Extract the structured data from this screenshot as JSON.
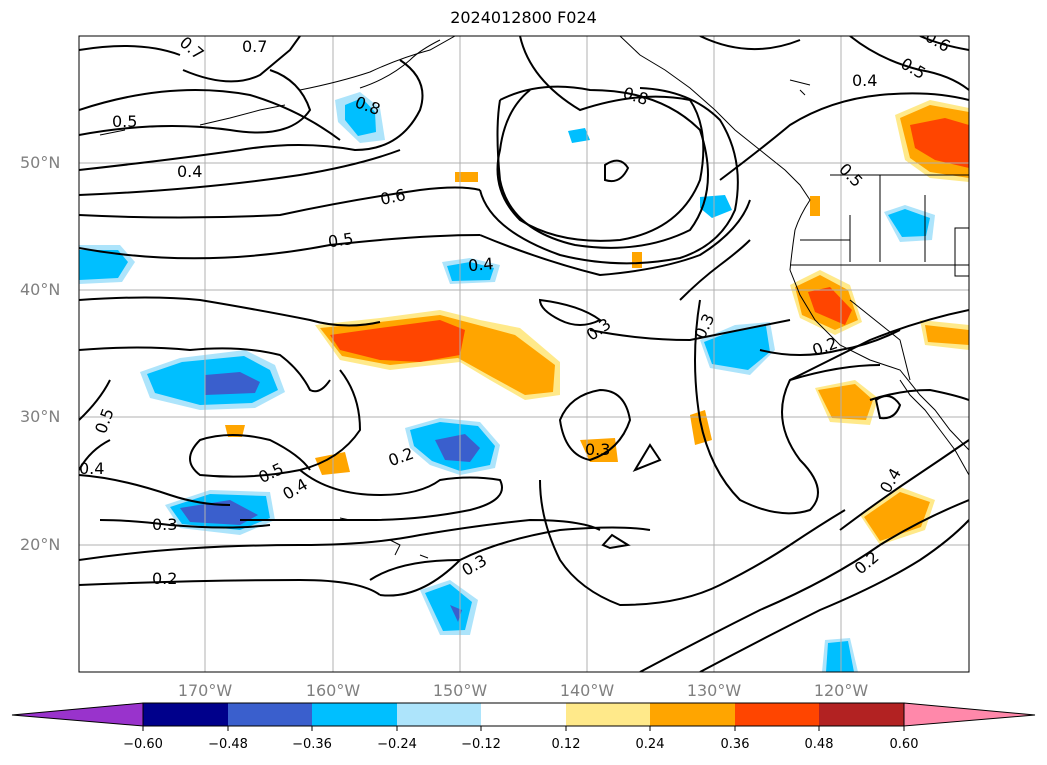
{
  "title": "2024012800 F024",
  "map": {
    "lat_labels": [
      "50°N",
      "40°N",
      "30°N",
      "20°N"
    ],
    "lon_labels": [
      "170°W",
      "160°W",
      "150°W",
      "140°W",
      "130°W",
      "120°W"
    ]
  },
  "contour_labels": [
    {
      "id": "c1",
      "text": "0.7"
    },
    {
      "id": "c2",
      "text": "0.7"
    },
    {
      "id": "c3",
      "text": "0.8"
    },
    {
      "id": "c4",
      "text": "0.5"
    },
    {
      "id": "c5",
      "text": "0.4"
    },
    {
      "id": "c6",
      "text": "0.6"
    },
    {
      "id": "c7",
      "text": "0.5"
    },
    {
      "id": "c8",
      "text": "0.4"
    },
    {
      "id": "c9",
      "text": "0.8"
    },
    {
      "id": "c10",
      "text": "0.4"
    },
    {
      "id": "c11",
      "text": "0.5"
    },
    {
      "id": "c12",
      "text": "0.6"
    },
    {
      "id": "c13",
      "text": "0.5"
    },
    {
      "id": "c14",
      "text": "0.3"
    },
    {
      "id": "c15",
      "text": "0.3"
    },
    {
      "id": "c16",
      "text": "0.2"
    },
    {
      "id": "c17",
      "text": "0.5"
    },
    {
      "id": "c18",
      "text": "0.4"
    },
    {
      "id": "c19",
      "text": "0.5"
    },
    {
      "id": "c20",
      "text": "0.4"
    },
    {
      "id": "c21",
      "text": "0.2"
    },
    {
      "id": "c22",
      "text": "0.3"
    },
    {
      "id": "c23",
      "text": "0.3"
    },
    {
      "id": "c24",
      "text": "0.3"
    },
    {
      "id": "c25",
      "text": "0.2"
    },
    {
      "id": "c26",
      "text": "0.4"
    },
    {
      "id": "c27",
      "text": "0.2"
    }
  ],
  "colorbar": {
    "ticks": [
      "−0.60",
      "−0.48",
      "−0.36",
      "−0.24",
      "−0.12",
      "0.12",
      "0.24",
      "0.36",
      "0.48",
      "0.60"
    ],
    "colors": [
      "#9933cc",
      "#00008b",
      "#3a5fcd",
      "#00bfff",
      "#ade4fb",
      "#ffffff",
      "#ffe98a",
      "#ffa500",
      "#ff4500",
      "#b22222",
      "#ff88aa"
    ]
  }
}
